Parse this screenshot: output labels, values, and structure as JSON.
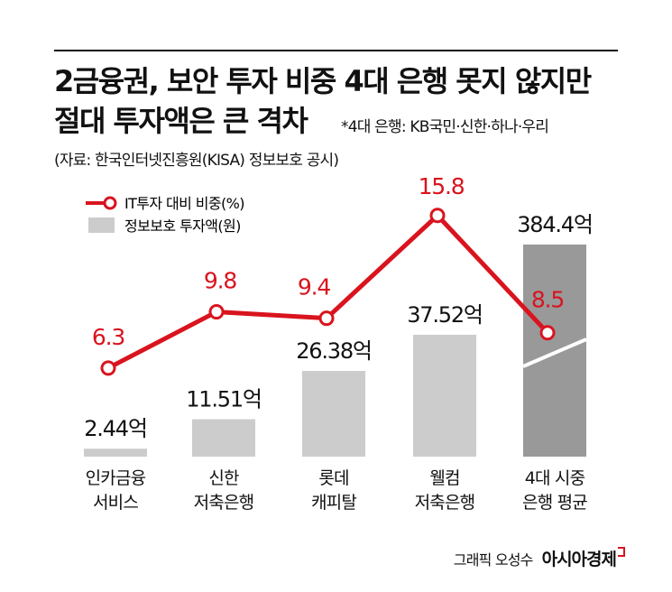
{
  "title_line1": "2금융권, 보안 투자 비중 4대 은행 못지 않지만",
  "title_line2": "절대 투자액은 큰 격차",
  "note": "*4대 은행: KB국민·신한·하나·우리",
  "source": "(자료: 한국인터넷진흥원(KISA) 정보보호 공시)",
  "credit": {
    "byline": "그래픽 오성수",
    "brand": "아시아경제"
  },
  "colors": {
    "line": "#d9141e",
    "bar": "#cccccc",
    "bar_highlight": "#999999",
    "text": "#111111"
  },
  "chart_data": {
    "type": "bar",
    "categories": [
      [
        "인카금융",
        "서비스"
      ],
      [
        "신한",
        "저축은행"
      ],
      [
        "롯데",
        "캐피탈"
      ],
      [
        "웰컴",
        "저축은행"
      ],
      [
        "4대 시중",
        "은행 평균"
      ]
    ],
    "series": [
      {
        "name": "정보보호 투자액(원)",
        "kind": "bar",
        "values": [
          2.44,
          11.51,
          26.38,
          37.52,
          384.4
        ],
        "labels": [
          "2.44억",
          "11.51억",
          "26.38억",
          "37.52억",
          "384.4억"
        ]
      },
      {
        "name": "IT투자 대비 비중(%)",
        "kind": "line",
        "values": [
          6.3,
          9.8,
          9.4,
          15.8,
          8.5
        ],
        "labels": [
          "6.3",
          "9.8",
          "9.4",
          "15.8",
          "8.5"
        ]
      }
    ],
    "axis_broken_bar_index": 4,
    "grid": false,
    "legend_position": "top-left"
  }
}
